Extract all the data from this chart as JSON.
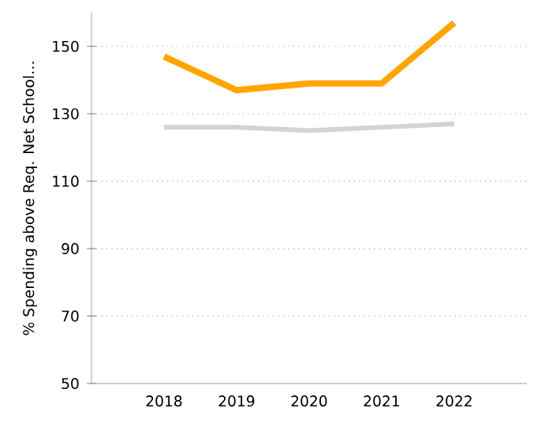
{
  "chart_data": {
    "type": "line",
    "ylabel": "% Spending above Req. Net School…",
    "categories": [
      "2018",
      "2019",
      "2020",
      "2021",
      "2022"
    ],
    "series": [
      {
        "color": "#ffa500",
        "values": [
          147,
          137,
          139,
          139,
          157
        ]
      },
      {
        "color": "#d3d3d3",
        "values": [
          126,
          126,
          125,
          126,
          127
        ]
      }
    ],
    "ylim": [
      50,
      160
    ],
    "yticks": [
      50,
      70,
      90,
      110,
      130,
      150
    ],
    "grid": "y"
  }
}
